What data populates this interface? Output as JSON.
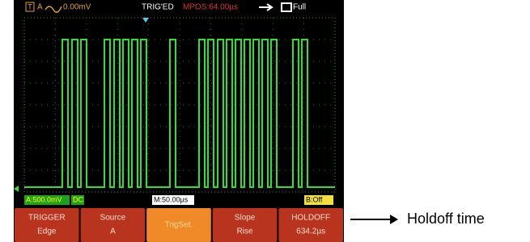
{
  "top_bar": {
    "trigger_icon": "T",
    "channel": "A",
    "trigger_level": "0.00mV",
    "status": "TRIG'ED",
    "mpos": "MPOS:64.00µs",
    "battery": "Full"
  },
  "status_bar": {
    "channel_a": "A:500.0mV",
    "coupling": "DC",
    "timebase": "M:50.00µs",
    "channel_b": "B:Off"
  },
  "menu": [
    {
      "label": "TRIGGER",
      "value": "Edge"
    },
    {
      "label": "Source",
      "value": "A"
    },
    {
      "label": "TrigSet."
    },
    {
      "label": "Slope",
      "value": "Rise"
    },
    {
      "label": "HOLDOFF",
      "value": "634.2µs"
    }
  ],
  "annotation": "Holdoff time"
}
